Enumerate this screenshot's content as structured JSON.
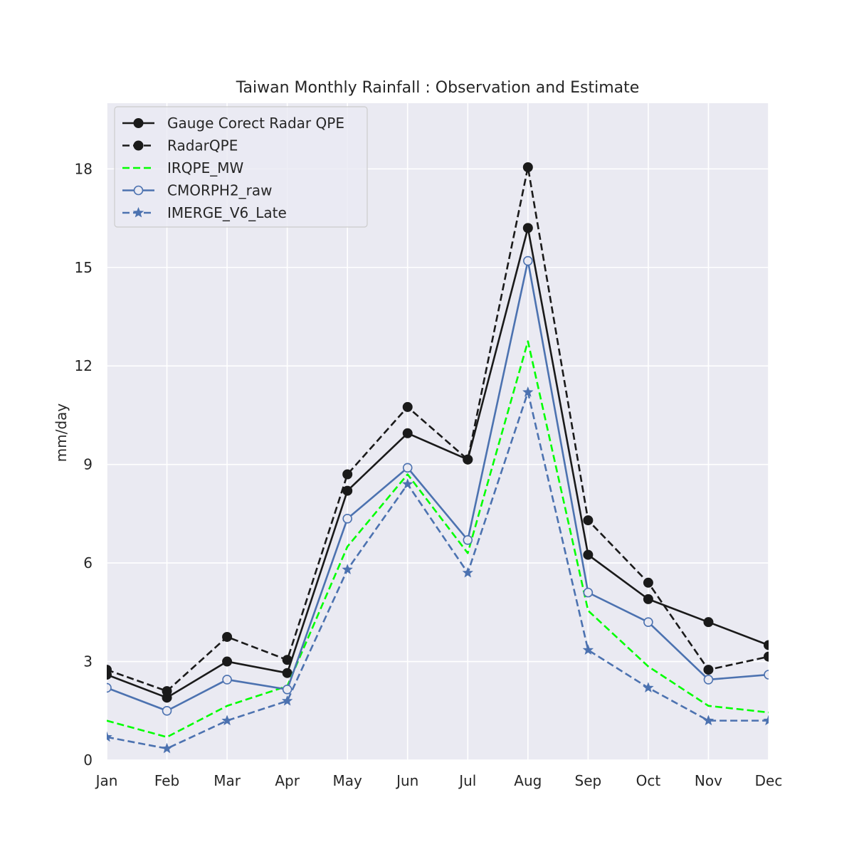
{
  "chart_data": {
    "type": "line",
    "title": "Taiwan Monthly Rainfall : Observation and Estimate",
    "xlabel": "",
    "ylabel": "mm/day",
    "categories": [
      "Jan",
      "Feb",
      "Mar",
      "Apr",
      "May",
      "Jun",
      "Jul",
      "Aug",
      "Sep",
      "Oct",
      "Nov",
      "Dec"
    ],
    "ylim": [
      0,
      20
    ],
    "yticks": [
      "0",
      "3",
      "6",
      "9",
      "12",
      "15",
      "18"
    ],
    "grid": true,
    "legend_position": "top-left",
    "background_color": "#eaeaf2",
    "series": [
      {
        "name": "Gauge Corect Radar QPE",
        "color": "#1a1a1a",
        "dash": "solid",
        "marker": "filled-circle",
        "values": [
          2.6,
          1.9,
          3.0,
          2.65,
          8.2,
          9.95,
          9.15,
          16.2,
          6.25,
          4.9,
          4.2,
          3.5
        ]
      },
      {
        "name": "RadarQPE",
        "color": "#1a1a1a",
        "dash": "dashed",
        "marker": "filled-circle",
        "values": [
          2.75,
          2.1,
          3.75,
          3.05,
          8.7,
          10.75,
          9.15,
          18.05,
          7.3,
          5.4,
          2.75,
          3.15
        ]
      },
      {
        "name": "IRQPE_MW",
        "color": "#00ff00",
        "dash": "dashed",
        "marker": "none",
        "values": [
          1.2,
          0.7,
          1.65,
          2.25,
          6.5,
          8.7,
          6.3,
          12.75,
          4.55,
          2.85,
          1.65,
          1.45
        ]
      },
      {
        "name": "CMORPH2_raw",
        "color": "#4c72b0",
        "dash": "solid",
        "marker": "open-circle",
        "values": [
          2.2,
          1.5,
          2.45,
          2.15,
          7.35,
          8.9,
          6.7,
          15.2,
          5.1,
          4.2,
          2.45,
          2.6
        ]
      },
      {
        "name": "IMERGE_V6_Late",
        "color": "#4c72b0",
        "dash": "dashed",
        "marker": "star",
        "values": [
          0.7,
          0.35,
          1.2,
          1.8,
          5.8,
          8.4,
          5.7,
          11.2,
          3.35,
          2.2,
          1.2,
          1.2
        ]
      }
    ]
  }
}
